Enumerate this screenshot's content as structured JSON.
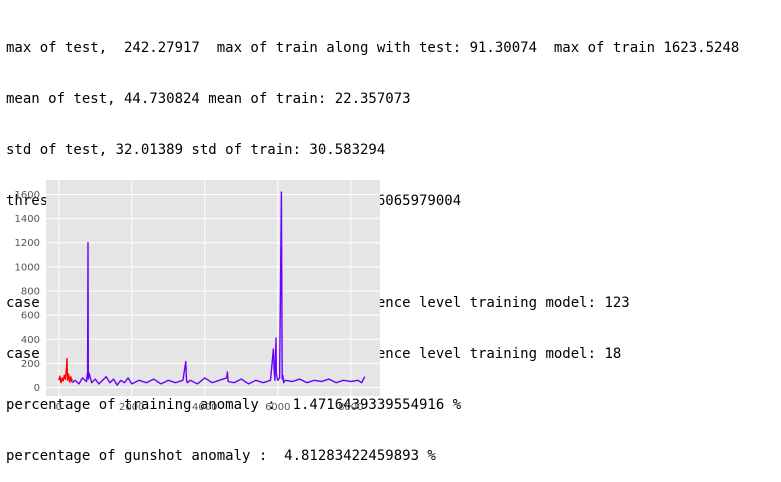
{
  "output_lines": [
    "max of test,  242.27917  max of train along with test: 91.30074  max of train 1623.5248",
    "mean of test, 44.730824 mean of train: 22.357073",
    "std of test, 32.01389 std of train: 30.583294",
    "threshold is 2 STD of training mean: 83.52366065979004",
    "",
    "case of training anomaly based on 95% confidence level training model: 123",
    "case of gun_shot anomaly based on 95% confidence level training model: 18",
    "percentage of training anomaly :  1.4716439339554916 %",
    "percentage of gunshot anomaly :  4.81283422459893 %"
  ],
  "chart_data": {
    "type": "line",
    "xlim": [
      -350,
      8800
    ],
    "ylim": [
      -70,
      1720
    ],
    "xticks": [
      0,
      2000,
      4000,
      6000,
      8000
    ],
    "yticks": [
      0,
      200,
      400,
      600,
      800,
      1000,
      1200,
      1400,
      1600
    ],
    "grid": true,
    "background": "#e5e5e5",
    "series": [
      {
        "color": "#ff0000",
        "x": [
          0,
          30,
          60,
          90,
          120,
          150,
          180,
          210,
          225,
          240,
          270,
          300,
          330,
          350,
          370
        ],
        "values": [
          60,
          95,
          40,
          80,
          55,
          100,
          70,
          150,
          242,
          60,
          110,
          45,
          90,
          50,
          70
        ]
      },
      {
        "color": "#6a00ff",
        "x": [
          370,
          450,
          550,
          650,
          760,
          790,
          800,
          810,
          830,
          900,
          1000,
          1100,
          1200,
          1300,
          1400,
          1500,
          1600,
          1700,
          1800,
          1900,
          2000,
          2200,
          2400,
          2600,
          2800,
          3000,
          3200,
          3400,
          3480,
          3500,
          3520,
          3600,
          3800,
          4000,
          4200,
          4400,
          4600,
          4620,
          4640,
          4800,
          5000,
          5200,
          5400,
          5600,
          5800,
          5880,
          5900,
          5920,
          5950,
          5960,
          5980,
          6000,
          6050,
          6100,
          6120,
          6140,
          6160,
          6200,
          6400,
          6600,
          6800,
          7000,
          7200,
          7400,
          7600,
          7800,
          8000,
          8200,
          8300,
          8380
        ],
        "values": [
          40,
          60,
          30,
          80,
          50,
          130,
          1200,
          70,
          120,
          40,
          70,
          30,
          60,
          90,
          40,
          70,
          20,
          60,
          40,
          80,
          30,
          60,
          40,
          70,
          30,
          60,
          40,
          60,
          215,
          60,
          40,
          60,
          30,
          80,
          40,
          60,
          80,
          130,
          50,
          40,
          70,
          30,
          60,
          40,
          60,
          320,
          150,
          60,
          410,
          120,
          80,
          60,
          80,
          1620,
          70,
          100,
          40,
          60,
          50,
          70,
          40,
          60,
          50,
          70,
          40,
          60,
          50,
          60,
          40,
          90
        ]
      }
    ]
  }
}
